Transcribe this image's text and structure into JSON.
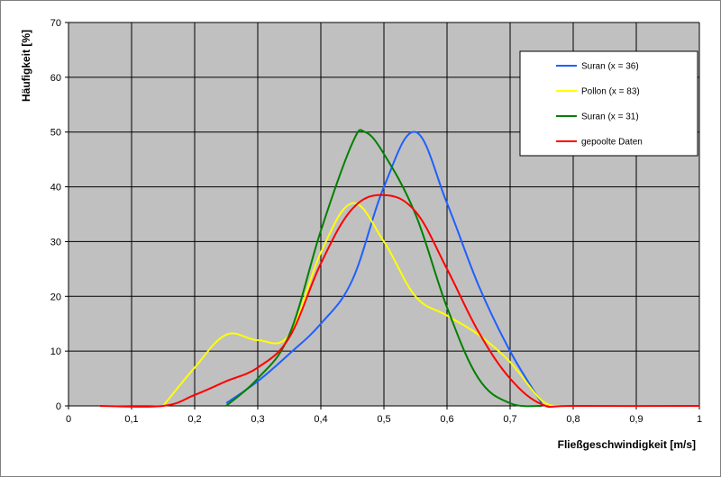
{
  "chart_data": {
    "type": "line",
    "title": "",
    "xlabel": "Fließgeschwindigkeit [m/s]",
    "ylabel": "Häufigkeit [%]",
    "xlim": [
      0,
      1
    ],
    "ylim": [
      0,
      70
    ],
    "x_ticks": [
      "0",
      "0,1",
      "0,2",
      "0,3",
      "0,4",
      "0,5",
      "0,6",
      "0,7",
      "0,8",
      "0,9",
      "1"
    ],
    "y_ticks": [
      "0",
      "10",
      "20",
      "30",
      "40",
      "50",
      "60",
      "70"
    ],
    "grid": true,
    "plot_background": "#c0c0c0",
    "legend_position": "top-right",
    "series": [
      {
        "name": "Suran (x = 36)",
        "color": "#1f5fff",
        "points": [
          [
            0.25,
            0.5
          ],
          [
            0.3,
            4.5
          ],
          [
            0.35,
            9.5
          ],
          [
            0.4,
            15
          ],
          [
            0.45,
            23
          ],
          [
            0.5,
            40
          ],
          [
            0.55,
            50
          ],
          [
            0.6,
            37
          ],
          [
            0.65,
            22
          ],
          [
            0.7,
            10
          ],
          [
            0.75,
            0.5
          ]
        ]
      },
      {
        "name": "Pollon (x = 83)",
        "color": "#ffff00",
        "points": [
          [
            0.15,
            0
          ],
          [
            0.2,
            7
          ],
          [
            0.25,
            13
          ],
          [
            0.3,
            12
          ],
          [
            0.35,
            13
          ],
          [
            0.4,
            28
          ],
          [
            0.45,
            37
          ],
          [
            0.5,
            30
          ],
          [
            0.55,
            20
          ],
          [
            0.6,
            16.5
          ],
          [
            0.65,
            13
          ],
          [
            0.7,
            8
          ],
          [
            0.75,
            1
          ],
          [
            0.78,
            0
          ]
        ]
      },
      {
        "name": "Suran (x = 31)",
        "color": "#008000",
        "points": [
          [
            0.25,
            0
          ],
          [
            0.3,
            5
          ],
          [
            0.35,
            13
          ],
          [
            0.4,
            32
          ],
          [
            0.45,
            48
          ],
          [
            0.47,
            50
          ],
          [
            0.5,
            46
          ],
          [
            0.55,
            35
          ],
          [
            0.6,
            18
          ],
          [
            0.65,
            5
          ],
          [
            0.7,
            0.5
          ],
          [
            0.75,
            0
          ]
        ]
      },
      {
        "name": "gepoolte Daten",
        "color": "#ff0000",
        "points": [
          [
            0.05,
            0
          ],
          [
            0.15,
            0
          ],
          [
            0.2,
            2
          ],
          [
            0.25,
            4.5
          ],
          [
            0.3,
            7
          ],
          [
            0.35,
            12.5
          ],
          [
            0.4,
            26
          ],
          [
            0.45,
            36
          ],
          [
            0.5,
            38.5
          ],
          [
            0.55,
            35.5
          ],
          [
            0.6,
            25
          ],
          [
            0.65,
            13.5
          ],
          [
            0.7,
            5
          ],
          [
            0.75,
            0.3
          ],
          [
            0.8,
            0
          ],
          [
            1.0,
            0
          ]
        ]
      }
    ]
  }
}
